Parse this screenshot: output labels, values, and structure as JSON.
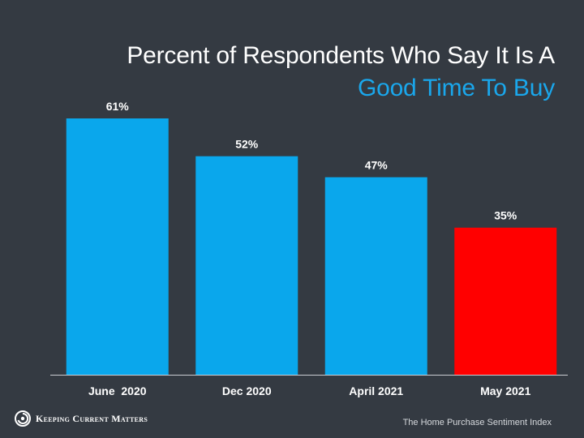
{
  "title": {
    "line1": "Percent of Respondents Who Say It Is A",
    "line2": "Good Time To Buy"
  },
  "chart_data": {
    "type": "bar",
    "categories": [
      "June  2020",
      "Dec 2020",
      "April 2021",
      "May 2021"
    ],
    "values": [
      61,
      52,
      47,
      35
    ],
    "value_labels": [
      "61%",
      "52%",
      "47%",
      "35%"
    ],
    "ylim": [
      0,
      70
    ],
    "bar_colors": [
      "#0aa7ec",
      "#0aa7ec",
      "#0aa7ec",
      "#ff0000"
    ],
    "title": "Percent of Respondents Who Say It Is A Good Time To Buy",
    "xlabel": "",
    "ylabel": ""
  },
  "logo": {
    "text": "Keeping Current Matters",
    "icon": "kcm-swirl-icon"
  },
  "source": "The Home Purchase Sentiment Index",
  "colors": {
    "background": "#343a42",
    "accent": "#1aa7ec",
    "highlight": "#ff0000",
    "text": "#ffffff"
  }
}
